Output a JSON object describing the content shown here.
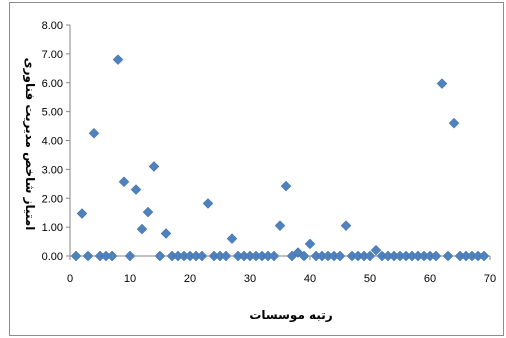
{
  "chart_data": {
    "type": "scatter",
    "title": "",
    "xlabel": "رتبه موسسات",
    "ylabel": "امتیاز شاخص مدیریت فناوری",
    "xlim": [
      0,
      70
    ],
    "ylim": [
      0,
      8
    ],
    "xticks": [
      "0",
      "10",
      "20",
      "30",
      "40",
      "50",
      "60",
      "70"
    ],
    "yticks": [
      "0.00",
      "1.00",
      "2.00",
      "3.00",
      "4.00",
      "5.00",
      "6.00",
      "7.00",
      "8.00"
    ],
    "grid": false,
    "legend": "none",
    "marker": "diamond",
    "color": "#4f81bd",
    "series": [
      {
        "x": [
          1,
          2,
          3,
          4,
          5,
          6,
          7,
          8,
          9,
          10,
          11,
          12,
          13,
          14,
          15,
          16,
          17,
          18,
          19,
          20,
          21,
          22,
          23,
          24,
          25,
          26,
          27,
          28,
          29,
          30,
          31,
          32,
          33,
          34,
          35,
          36,
          37,
          38,
          39,
          40,
          41,
          42,
          43,
          44,
          45,
          46,
          47,
          48,
          49,
          50,
          51,
          52,
          53,
          54,
          55,
          56,
          57,
          58,
          59,
          60,
          61,
          62,
          63,
          64,
          65,
          66,
          67,
          68,
          69
        ],
        "y": [
          0.0,
          1.47,
          0.0,
          4.25,
          0.0,
          0.0,
          0.0,
          6.8,
          2.57,
          0.0,
          2.3,
          0.93,
          1.52,
          3.1,
          0.0,
          0.78,
          0.0,
          0.0,
          0.0,
          0.0,
          0.0,
          0.0,
          1.82,
          0.0,
          0.0,
          0.0,
          0.6,
          0.0,
          0.0,
          0.0,
          0.0,
          0.0,
          0.0,
          0.0,
          1.05,
          2.42,
          0.0,
          0.12,
          0.0,
          0.42,
          0.0,
          0.0,
          0.0,
          0.0,
          0.0,
          1.05,
          0.0,
          0.0,
          0.0,
          0.0,
          0.2,
          0.0,
          0.0,
          0.0,
          0.0,
          0.0,
          0.0,
          0.0,
          0.0,
          0.0,
          0.0,
          5.97,
          0.0,
          4.6,
          0.0,
          0.0,
          0.0,
          0.0,
          0.0
        ]
      }
    ]
  }
}
